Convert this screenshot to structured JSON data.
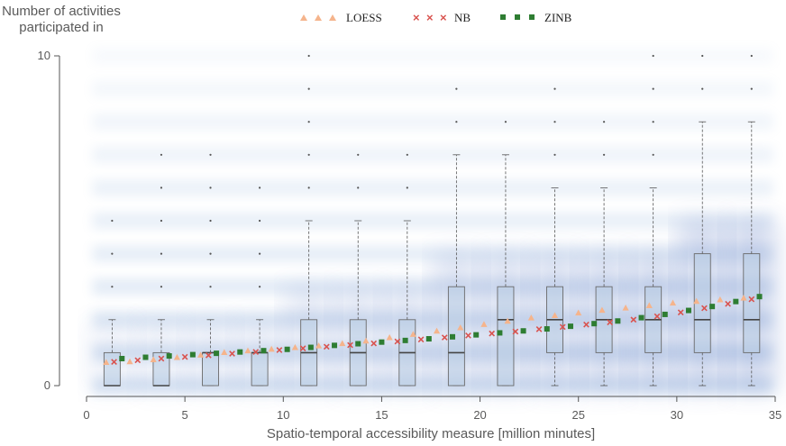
{
  "chart_data": {
    "type": "box",
    "title": "",
    "xlabel": "Spatio-temporal accessibility measure [million minutes]",
    "ylabel": [
      "Number of activities",
      "participated in"
    ],
    "xlim": [
      0,
      35
    ],
    "ylim": [
      0,
      10
    ],
    "x_ticks": [
      "0",
      "5",
      "10",
      "15",
      "20",
      "25",
      "30",
      "35"
    ],
    "y_ticks": [
      "0",
      "10"
    ],
    "legend": [
      {
        "name": "LOESS",
        "marker": "triangle",
        "color": "#f5b48c"
      },
      {
        "name": "NB",
        "marker": "x",
        "color": "#d9534f"
      },
      {
        "name": "ZINB",
        "marker": "square",
        "color": "#2e7d32"
      }
    ],
    "boxes": [
      {
        "x": 1.3,
        "q1": 0,
        "median": 0,
        "q3": 1,
        "whisker_low": 0,
        "whisker_high": 2,
        "outliers": [
          3,
          4,
          5
        ]
      },
      {
        "x": 3.8,
        "q1": 0,
        "median": 0,
        "q3": 1,
        "whisker_low": 0,
        "whisker_high": 2,
        "outliers": [
          3,
          4,
          5,
          6,
          7
        ]
      },
      {
        "x": 6.3,
        "q1": 0,
        "median": 1,
        "q3": 1,
        "whisker_low": 0,
        "whisker_high": 2,
        "outliers": [
          3,
          4,
          5,
          6,
          7
        ]
      },
      {
        "x": 8.8,
        "q1": 0,
        "median": 1,
        "q3": 1,
        "whisker_low": 0,
        "whisker_high": 2,
        "outliers": [
          3,
          4,
          5,
          6
        ]
      },
      {
        "x": 11.3,
        "q1": 0,
        "median": 1,
        "q3": 2,
        "whisker_low": 0,
        "whisker_high": 5,
        "outliers": [
          6,
          7,
          8,
          9,
          10
        ]
      },
      {
        "x": 13.8,
        "q1": 0,
        "median": 1,
        "q3": 2,
        "whisker_low": 0,
        "whisker_high": 5,
        "outliers": [
          6,
          7
        ]
      },
      {
        "x": 16.3,
        "q1": 0,
        "median": 1,
        "q3": 2,
        "whisker_low": 0,
        "whisker_high": 5,
        "outliers": [
          6,
          7
        ]
      },
      {
        "x": 18.8,
        "q1": 0,
        "median": 1,
        "q3": 3,
        "whisker_low": 0,
        "whisker_high": 7,
        "outliers": [
          8,
          9
        ]
      },
      {
        "x": 21.3,
        "q1": 0,
        "median": 2,
        "q3": 3,
        "whisker_low": 0,
        "whisker_high": 7,
        "outliers": [
          8
        ]
      },
      {
        "x": 23.8,
        "q1": 1,
        "median": 2,
        "q3": 3,
        "whisker_low": 0,
        "whisker_high": 6,
        "outliers": [
          7,
          8,
          9
        ]
      },
      {
        "x": 26.3,
        "q1": 1,
        "median": 2,
        "q3": 3,
        "whisker_low": 0,
        "whisker_high": 6,
        "outliers": [
          7,
          8
        ]
      },
      {
        "x": 28.8,
        "q1": 1,
        "median": 2,
        "q3": 3,
        "whisker_low": 0,
        "whisker_high": 6,
        "outliers": [
          7,
          8,
          9,
          10
        ]
      },
      {
        "x": 31.3,
        "q1": 1,
        "median": 2,
        "q3": 4,
        "whisker_low": 0,
        "whisker_high": 8,
        "outliers": [
          9,
          10
        ]
      },
      {
        "x": 33.8,
        "q1": 1,
        "median": 2,
        "q3": 4,
        "whisker_low": 0,
        "whisker_high": 8,
        "outliers": [
          9,
          10
        ]
      }
    ],
    "series": [
      {
        "name": "LOESS",
        "x": [
          1.0,
          2.2,
          3.4,
          4.6,
          5.8,
          7.0,
          8.2,
          9.4,
          10.6,
          11.8,
          13.0,
          14.2,
          15.4,
          16.6,
          17.8,
          19.0,
          20.2,
          21.4,
          22.6,
          23.8,
          25.0,
          26.2,
          27.4,
          28.6,
          29.8,
          31.0,
          32.2,
          33.4
        ],
        "y": [
          0.7,
          0.72,
          0.78,
          0.85,
          0.92,
          1.0,
          1.05,
          1.1,
          1.15,
          1.2,
          1.27,
          1.35,
          1.45,
          1.55,
          1.65,
          1.75,
          1.85,
          1.95,
          2.05,
          2.12,
          2.2,
          2.28,
          2.35,
          2.42,
          2.5,
          2.55,
          2.6,
          2.65
        ]
      },
      {
        "name": "NB",
        "x": [
          1.4,
          2.6,
          3.8,
          5.0,
          6.2,
          7.4,
          8.6,
          9.8,
          11.0,
          12.2,
          13.4,
          14.6,
          15.8,
          17.0,
          18.2,
          19.4,
          20.6,
          21.8,
          23.0,
          24.2,
          25.4,
          26.6,
          27.8,
          29.0,
          30.2,
          31.4,
          32.6,
          33.8
        ],
        "y": [
          0.72,
          0.77,
          0.82,
          0.87,
          0.92,
          0.97,
          1.02,
          1.08,
          1.13,
          1.18,
          1.23,
          1.28,
          1.34,
          1.4,
          1.46,
          1.52,
          1.58,
          1.64,
          1.71,
          1.78,
          1.85,
          1.92,
          2.0,
          2.1,
          2.22,
          2.35,
          2.48,
          2.62
        ]
      },
      {
        "name": "ZINB",
        "x": [
          1.8,
          3.0,
          4.2,
          5.4,
          6.6,
          7.8,
          9.0,
          10.2,
          11.4,
          12.6,
          13.8,
          15.0,
          16.2,
          17.4,
          18.6,
          19.8,
          21.0,
          22.2,
          23.4,
          24.6,
          25.8,
          27.0,
          28.2,
          29.4,
          30.6,
          31.8,
          33.0,
          34.2
        ],
        "y": [
          0.82,
          0.86,
          0.9,
          0.94,
          0.98,
          1.02,
          1.06,
          1.1,
          1.16,
          1.22,
          1.27,
          1.32,
          1.37,
          1.42,
          1.48,
          1.54,
          1.6,
          1.66,
          1.72,
          1.8,
          1.88,
          1.96,
          2.06,
          2.16,
          2.28,
          2.4,
          2.55,
          2.7
        ]
      }
    ],
    "density_background": true,
    "grid": false,
    "legend_position": "top-center"
  }
}
